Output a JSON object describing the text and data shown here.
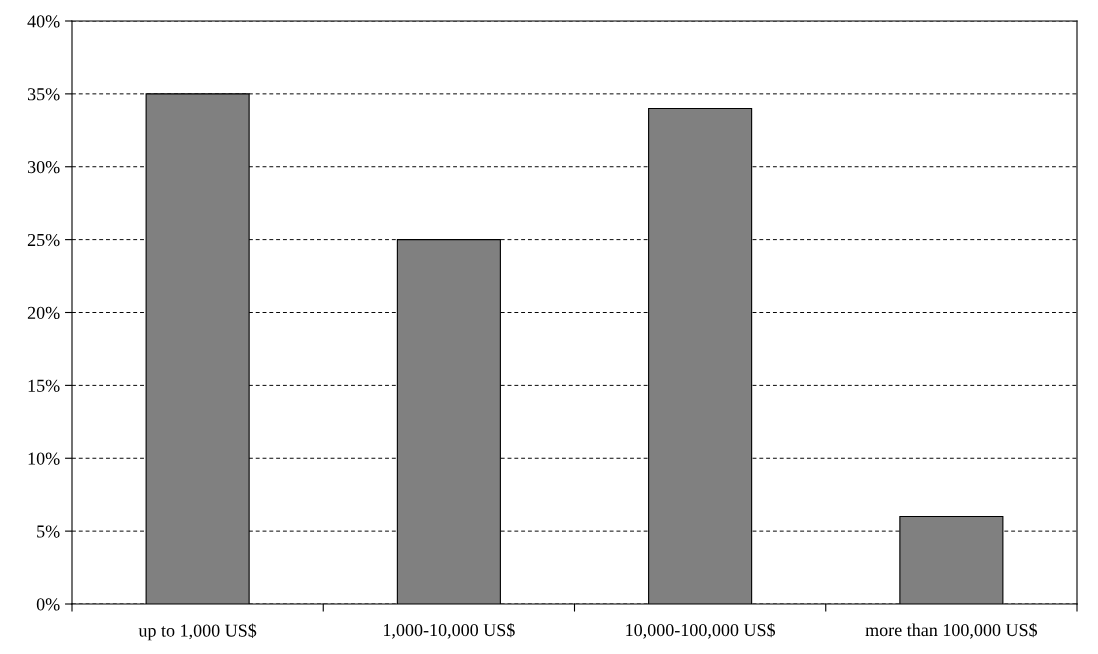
{
  "chart_data": {
    "type": "bar",
    "categories": [
      "up to 1,000 US$",
      "1,000-10,000 US$",
      "10,000-100,000 US$",
      "more than 100,000 US$"
    ],
    "values": [
      35,
      25,
      34,
      6
    ],
    "color": "#808080",
    "ylim": [
      0,
      40
    ],
    "yticks": [
      {
        "value": 0,
        "label": "0%"
      },
      {
        "value": 5,
        "label": "5%"
      },
      {
        "value": 10,
        "label": "10%"
      },
      {
        "value": 15,
        "label": "15%"
      },
      {
        "value": 20,
        "label": "20%"
      },
      {
        "value": 25,
        "label": "25%"
      },
      {
        "value": 30,
        "label": "30%"
      },
      {
        "value": 35,
        "label": "35%"
      },
      {
        "value": 40,
        "label": "40%"
      }
    ],
    "grid": "y",
    "legend": false
  }
}
